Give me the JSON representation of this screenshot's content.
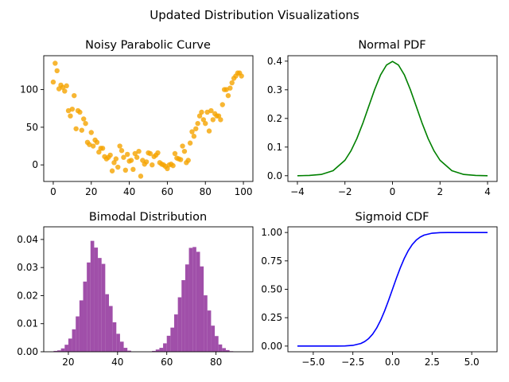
{
  "figure": {
    "suptitle": "Updated Distribution Visualizations"
  },
  "chart_data": [
    {
      "id": "noisy",
      "type": "scatter",
      "title": "Noisy Parabolic Curve",
      "xlabel": "",
      "ylabel": "",
      "xlim": [
        -5,
        105
      ],
      "ylim": [
        -22,
        145
      ],
      "xticks": [
        0,
        20,
        40,
        60,
        80,
        100
      ],
      "xtick_labels": [
        "0",
        "20",
        "40",
        "60",
        "80",
        "100"
      ],
      "yticks": [
        0,
        50,
        100
      ],
      "ytick_labels": [
        "0",
        "50",
        "100"
      ],
      "color": "#f5a400",
      "series": [
        {
          "x": [
            0,
            1,
            2,
            3,
            4,
            5,
            6,
            7,
            8,
            9,
            10,
            11,
            12,
            13,
            14,
            15,
            16,
            17,
            18,
            19,
            20,
            21,
            22,
            23,
            24,
            25,
            26,
            27,
            28,
            29,
            30,
            31,
            32,
            33,
            34,
            35,
            36,
            37,
            38,
            39,
            40,
            41,
            42,
            43,
            44,
            45,
            46,
            47,
            48,
            49,
            50,
            51,
            52,
            53,
            54,
            55,
            56,
            57,
            58,
            59,
            60,
            61,
            62,
            63,
            64,
            65,
            66,
            67,
            68,
            69,
            70,
            71,
            72,
            73,
            74,
            75,
            76,
            77,
            78,
            79,
            80,
            81,
            82,
            83,
            84,
            85,
            86,
            87,
            88,
            89,
            90,
            91,
            92,
            93,
            94,
            95,
            96,
            97,
            98,
            99
          ],
          "y": [
            110,
            135,
            125,
            101,
            106,
            103,
            98,
            105,
            72,
            65,
            74,
            92,
            48,
            72,
            70,
            46,
            61,
            55,
            30,
            27,
            43,
            25,
            33,
            30,
            17,
            22,
            22,
            11,
            8,
            10,
            13,
            -8,
            3,
            8,
            -3,
            25,
            19,
            10,
            -7,
            14,
            5,
            6,
            -6,
            15,
            10,
            18,
            -15,
            6,
            1,
            4,
            16,
            15,
            0,
            11,
            13,
            16,
            3,
            1,
            0,
            -2,
            -5,
            0,
            1,
            -1,
            15,
            9,
            8,
            7,
            25,
            18,
            3,
            6,
            29,
            44,
            38,
            48,
            55,
            65,
            70,
            60,
            55,
            70,
            45,
            72,
            60,
            68,
            65,
            65,
            60,
            80,
            100,
            100,
            92,
            102,
            109,
            115,
            118,
            122,
            122,
            118
          ]
        }
      ]
    },
    {
      "id": "normal",
      "type": "line",
      "title": "Normal PDF",
      "xlabel": "",
      "ylabel": "",
      "xlim": [
        -4.4,
        4.4
      ],
      "ylim": [
        -0.02,
        0.419
      ],
      "xticks": [
        -4,
        -2,
        0,
        2,
        4
      ],
      "xtick_labels": [
        "−4",
        "−2",
        "0",
        "2",
        "4"
      ],
      "yticks": [
        0.0,
        0.1,
        0.2,
        0.3,
        0.4
      ],
      "ytick_labels": [
        "0.0",
        "0.1",
        "0.2",
        "0.3",
        "0.4"
      ],
      "color": "#008000",
      "series": [
        {
          "x": [
            -4.0,
            -3.5,
            -3.0,
            -2.5,
            -2.0,
            -1.75,
            -1.5,
            -1.25,
            -1.0,
            -0.75,
            -0.5,
            -0.25,
            0.0,
            0.25,
            0.5,
            0.75,
            1.0,
            1.25,
            1.5,
            1.75,
            2.0,
            2.5,
            3.0,
            3.5,
            4.0
          ],
          "y": [
            0.0001,
            0.0009,
            0.0044,
            0.0175,
            0.054,
            0.0863,
            0.1295,
            0.1826,
            0.242,
            0.3011,
            0.3521,
            0.3867,
            0.3989,
            0.3867,
            0.3521,
            0.3011,
            0.242,
            0.1826,
            0.1295,
            0.0863,
            0.054,
            0.0175,
            0.0044,
            0.0009,
            0.0001
          ]
        }
      ]
    },
    {
      "id": "bimodal",
      "type": "bar",
      "title": "Bimodal Distribution",
      "xlabel": "",
      "ylabel": "",
      "xlim": [
        10,
        95
      ],
      "ylim": [
        0,
        0.0445
      ],
      "xticks": [
        20,
        40,
        60,
        80
      ],
      "xtick_labels": [
        "20",
        "40",
        "60",
        "80"
      ],
      "yticks": [
        0.0,
        0.01,
        0.02,
        0.03,
        0.04
      ],
      "ytick_labels": [
        "0.00",
        "0.01",
        "0.02",
        "0.03",
        "0.04"
      ],
      "color": "#963ca0",
      "bin_width": 1.5,
      "series": [
        {
          "bin_starts": [
            14,
            15.5,
            17,
            18.5,
            20,
            21.5,
            23,
            24.5,
            26,
            27.5,
            29,
            30.5,
            32,
            33.5,
            35,
            36.5,
            38,
            39.5,
            41,
            42.5,
            44,
            54,
            55.5,
            57,
            58.5,
            60,
            61.5,
            63,
            64.5,
            66,
            67.5,
            69,
            70.5,
            72,
            73.5,
            75,
            76.5,
            78,
            79.5,
            81,
            82.5,
            84,
            85.5
          ],
          "values": [
            0.0003,
            0.0005,
            0.0012,
            0.0025,
            0.0047,
            0.008,
            0.0126,
            0.0183,
            0.025,
            0.0318,
            0.0395,
            0.0371,
            0.0334,
            0.0313,
            0.0205,
            0.0163,
            0.0105,
            0.0064,
            0.0036,
            0.0014,
            0.0004,
            0.0003,
            0.0008,
            0.0014,
            0.003,
            0.0057,
            0.0086,
            0.0133,
            0.0194,
            0.0255,
            0.0311,
            0.037,
            0.0373,
            0.0356,
            0.0304,
            0.0201,
            0.0147,
            0.0093,
            0.0056,
            0.0026,
            0.0013,
            0.0006,
            0.0002
          ]
        }
      ]
    },
    {
      "id": "sigmoid",
      "type": "line",
      "title": "Sigmoid CDF",
      "xlabel": "",
      "ylabel": "",
      "xlim": [
        -6.6,
        6.6
      ],
      "ylim": [
        -0.05,
        1.05
      ],
      "xticks": [
        -5,
        -2.5,
        0,
        2.5,
        5
      ],
      "xtick_labels": [
        "−5.0",
        "−2.5",
        "0.0",
        "2.5",
        "5.0"
      ],
      "yticks": [
        0.0,
        0.25,
        0.5,
        0.75,
        1.0
      ],
      "ytick_labels": [
        "0.00",
        "0.25",
        "0.50",
        "0.75",
        "1.00"
      ],
      "color": "#0000ff",
      "series": [
        {
          "x": [
            -6.0,
            -5.0,
            -4.0,
            -3.5,
            -3.0,
            -2.5,
            -2.0,
            -1.75,
            -1.5,
            -1.25,
            -1.0,
            -0.75,
            -0.5,
            -0.25,
            0.0,
            0.25,
            0.5,
            0.75,
            1.0,
            1.25,
            1.5,
            1.75,
            2.0,
            2.5,
            3.0,
            3.5,
            4.0,
            5.0,
            6.0
          ],
          "y": [
            0.0,
            0.0,
            0.0,
            0.0002,
            0.0013,
            0.0062,
            0.0228,
            0.0401,
            0.0668,
            0.1056,
            0.1587,
            0.2266,
            0.3085,
            0.4013,
            0.5,
            0.5987,
            0.6915,
            0.7734,
            0.8413,
            0.8944,
            0.9332,
            0.9599,
            0.9772,
            0.9938,
            0.9987,
            0.9998,
            1.0,
            1.0,
            1.0
          ]
        }
      ]
    }
  ]
}
